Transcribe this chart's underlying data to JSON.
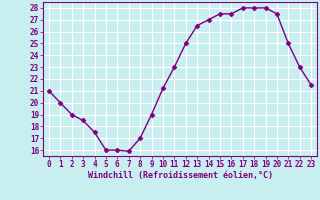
{
  "x": [
    0,
    1,
    2,
    3,
    4,
    5,
    6,
    7,
    8,
    9,
    10,
    11,
    12,
    13,
    14,
    15,
    16,
    17,
    18,
    19,
    20,
    21,
    22,
    23
  ],
  "y": [
    21,
    20,
    19,
    18.5,
    17.5,
    16,
    16,
    15.9,
    17,
    19,
    21.2,
    23,
    25,
    26.5,
    27,
    27.5,
    27.5,
    28,
    28,
    28,
    27.5,
    25,
    23,
    21.5
  ],
  "line_color": "#800080",
  "marker": "D",
  "marker_size": 2.5,
  "background_color": "#c8eef0",
  "grid_color": "#aadddd",
  "xlabel": "Windchill (Refroidissement éolien,°C)",
  "xlim": [
    -0.5,
    23.5
  ],
  "ylim": [
    15.5,
    28.5
  ],
  "yticks": [
    16,
    17,
    18,
    19,
    20,
    21,
    22,
    23,
    24,
    25,
    26,
    27,
    28
  ],
  "xticks": [
    0,
    1,
    2,
    3,
    4,
    5,
    6,
    7,
    8,
    9,
    10,
    11,
    12,
    13,
    14,
    15,
    16,
    17,
    18,
    19,
    20,
    21,
    22,
    23
  ],
  "xlabel_color": "#800080",
  "tick_color": "#800080",
  "spine_color": "#800080",
  "line_width": 1.0,
  "tick_fontsize": 5.5,
  "xlabel_fontsize": 6.0
}
